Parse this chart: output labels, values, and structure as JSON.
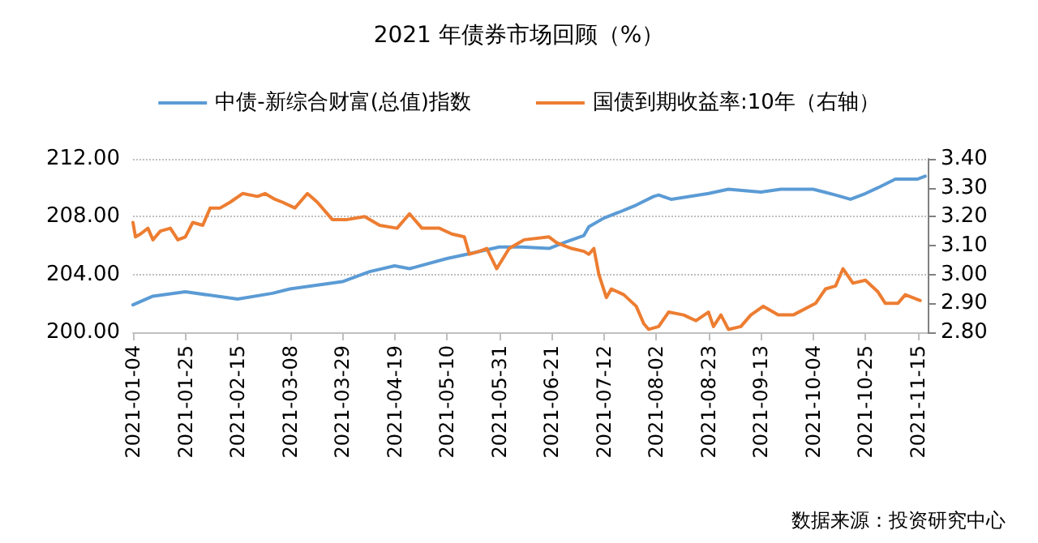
{
  "chart_data": {
    "type": "line",
    "title": "2021 年债券市场回顾（%）",
    "annotations": [
      "数据来源：投资研究中心"
    ],
    "legend": "top",
    "grid": "y",
    "marker": "none",
    "line_style": "solid",
    "xlim": [
      "2021-01-04",
      "2021-11-19"
    ],
    "xticks": [
      "2021-01-04",
      "2021-01-25",
      "2021-02-15",
      "2021-03-08",
      "2021-03-29",
      "2021-04-19",
      "2021-05-10",
      "2021-05-31",
      "2021-06-21",
      "2021-07-12",
      "2021-08-02",
      "2021-08-23",
      "2021-09-13",
      "2021-10-04",
      "2021-10-25",
      "2021-11-15"
    ],
    "ylim": [
      200,
      212
    ],
    "yticks": [
      {
        "value": 200,
        "label": "200.00"
      },
      {
        "value": 204,
        "label": "204.00"
      },
      {
        "value": 208,
        "label": "208.00"
      },
      {
        "value": 212,
        "label": "212.00"
      }
    ],
    "y2lim": [
      2.8,
      3.4
    ],
    "y2ticks": [
      {
        "value": 2.8,
        "label": "2.80"
      },
      {
        "value": 2.9,
        "label": "2.90"
      },
      {
        "value": 3.0,
        "label": "3.00"
      },
      {
        "value": 3.1,
        "label": "3.10"
      },
      {
        "value": 3.2,
        "label": "3.20"
      },
      {
        "value": 3.3,
        "label": "3.30"
      },
      {
        "value": 3.4,
        "label": "3.40"
      }
    ],
    "series": [
      {
        "name": "中债-新综合财富(总值)指数",
        "color": "#5b9bd5",
        "x": [
          "2021-01-04",
          "2021-01-12",
          "2021-01-25",
          "2021-02-15",
          "2021-03-01",
          "2021-03-08",
          "2021-03-29",
          "2021-04-09",
          "2021-04-19",
          "2021-04-25",
          "2021-05-10",
          "2021-05-18",
          "2021-05-31",
          "2021-06-09",
          "2021-06-20",
          "2021-06-26",
          "2021-07-04",
          "2021-07-06",
          "2021-07-12",
          "2021-07-18",
          "2021-07-25",
          "2021-08-01",
          "2021-08-03",
          "2021-08-08",
          "2021-08-23",
          "2021-08-31",
          "2021-09-13",
          "2021-09-21",
          "2021-10-04",
          "2021-10-13",
          "2021-10-19",
          "2021-10-25",
          "2021-10-30",
          "2021-11-06",
          "2021-11-15",
          "2021-11-18"
        ],
        "values": [
          201.9,
          202.5,
          202.8,
          202.3,
          202.7,
          203.0,
          203.5,
          204.2,
          204.6,
          204.4,
          205.1,
          205.4,
          205.9,
          205.9,
          205.8,
          206.2,
          206.7,
          207.3,
          207.9,
          208.3,
          208.8,
          209.4,
          209.5,
          209.2,
          209.6,
          209.9,
          209.7,
          209.9,
          209.9,
          209.5,
          209.2,
          209.6,
          210.0,
          210.6,
          210.6,
          210.8
        ]
      },
      {
        "name": "国债到期收益率:10年（右轴）",
        "color": "#ed7d31",
        "axis": "y2",
        "x": [
          "2021-01-04",
          "2021-01-05",
          "2021-01-07",
          "2021-01-10",
          "2021-01-12",
          "2021-01-15",
          "2021-01-19",
          "2021-01-22",
          "2021-01-25",
          "2021-01-28",
          "2021-02-01",
          "2021-02-04",
          "2021-02-08",
          "2021-02-12",
          "2021-02-17",
          "2021-02-23",
          "2021-02-26",
          "2021-03-02",
          "2021-03-05",
          "2021-03-10",
          "2021-03-15",
          "2021-03-19",
          "2021-03-25",
          "2021-03-31",
          "2021-04-07",
          "2021-04-13",
          "2021-04-20",
          "2021-04-25",
          "2021-04-30",
          "2021-05-07",
          "2021-05-12",
          "2021-05-17",
          "2021-05-19",
          "2021-05-23",
          "2021-05-26",
          "2021-05-30",
          "2021-06-04",
          "2021-06-08",
          "2021-06-10",
          "2021-06-20",
          "2021-06-23",
          "2021-06-29",
          "2021-07-04",
          "2021-07-06",
          "2021-07-08",
          "2021-07-10",
          "2021-07-13",
          "2021-07-15",
          "2021-07-20",
          "2021-07-25",
          "2021-07-28",
          "2021-07-30",
          "2021-08-03",
          "2021-08-07",
          "2021-08-13",
          "2021-08-18",
          "2021-08-23",
          "2021-08-25",
          "2021-08-28",
          "2021-08-31",
          "2021-09-05",
          "2021-09-09",
          "2021-09-14",
          "2021-09-20",
          "2021-09-26",
          "2021-10-05",
          "2021-10-09",
          "2021-10-13",
          "2021-10-16",
          "2021-10-20",
          "2021-10-25",
          "2021-10-30",
          "2021-11-02",
          "2021-11-07",
          "2021-11-10",
          "2021-11-16"
        ],
        "values": [
          3.18,
          3.13,
          3.14,
          3.16,
          3.12,
          3.15,
          3.16,
          3.12,
          3.13,
          3.18,
          3.17,
          3.23,
          3.23,
          3.25,
          3.28,
          3.27,
          3.28,
          3.26,
          3.25,
          3.23,
          3.28,
          3.25,
          3.19,
          3.19,
          3.2,
          3.17,
          3.16,
          3.21,
          3.16,
          3.16,
          3.14,
          3.13,
          3.07,
          3.08,
          3.09,
          3.02,
          3.09,
          3.11,
          3.12,
          3.13,
          3.11,
          3.09,
          3.08,
          3.07,
          3.09,
          3.0,
          2.92,
          2.95,
          2.93,
          2.89,
          2.83,
          2.81,
          2.82,
          2.87,
          2.86,
          2.84,
          2.87,
          2.82,
          2.86,
          2.81,
          2.82,
          2.86,
          2.89,
          2.86,
          2.86,
          2.9,
          2.95,
          2.96,
          3.02,
          2.97,
          2.98,
          2.94,
          2.9,
          2.9,
          2.93,
          2.91
        ]
      }
    ]
  }
}
